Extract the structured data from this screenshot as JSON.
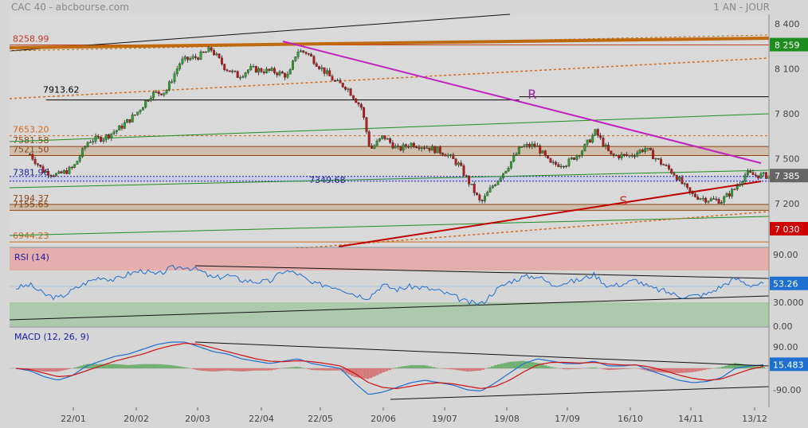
{
  "header": {
    "title": "CAC 40 - abcbourse.com",
    "period": "1 AN - JOUR"
  },
  "chart_data": [
    {
      "type": "candlestick",
      "title": "CAC 40",
      "y_ticks": [
        "8 400",
        "8 100",
        "7 800",
        "7 500",
        "7 200"
      ],
      "y_tick_values": [
        8400,
        8100,
        7800,
        7500,
        7200
      ],
      "ylim": [
        6900,
        8500
      ],
      "x_ticks": [
        "22/01",
        "20/02",
        "20/03",
        "22/04",
        "22/05",
        "20/06",
        "19/07",
        "19/08",
        "17/09",
        "16/10",
        "14/11",
        "13/12"
      ],
      "price_anchors": [
        {
          "date": "02/01",
          "close": 7530
        },
        {
          "date": "08/01",
          "close": 7420
        },
        {
          "date": "15/01",
          "close": 7390
        },
        {
          "date": "22/01",
          "close": 7440
        },
        {
          "date": "29/01",
          "close": 7620
        },
        {
          "date": "05/02",
          "close": 7640
        },
        {
          "date": "12/02",
          "close": 7700
        },
        {
          "date": "20/02",
          "close": 7800
        },
        {
          "date": "27/02",
          "close": 7930
        },
        {
          "date": "05/03",
          "close": 7950
        },
        {
          "date": "12/03",
          "close": 8150
        },
        {
          "date": "20/03",
          "close": 8180
        },
        {
          "date": "27/03",
          "close": 8230
        },
        {
          "date": "03/04",
          "close": 8110
        },
        {
          "date": "10/04",
          "close": 8050
        },
        {
          "date": "16/04",
          "close": 8100
        },
        {
          "date": "22/04",
          "close": 8090
        },
        {
          "date": "29/04",
          "close": 8080
        },
        {
          "date": "06/05",
          "close": 8050
        },
        {
          "date": "10/05",
          "close": 8220
        },
        {
          "date": "15/05",
          "close": 8210
        },
        {
          "date": "22/05",
          "close": 8110
        },
        {
          "date": "29/05",
          "close": 8010
        },
        {
          "date": "03/06",
          "close": 7980
        },
        {
          "date": "10/06",
          "close": 7840
        },
        {
          "date": "14/06",
          "close": 7560
        },
        {
          "date": "20/06",
          "close": 7650
        },
        {
          "date": "27/06",
          "close": 7560
        },
        {
          "date": "03/07",
          "close": 7600
        },
        {
          "date": "10/07",
          "close": 7580
        },
        {
          "date": "19/07",
          "close": 7540
        },
        {
          "date": "26/07",
          "close": 7460
        },
        {
          "date": "02/08",
          "close": 7300
        },
        {
          "date": "06/08",
          "close": 7200
        },
        {
          "date": "12/08",
          "close": 7320
        },
        {
          "date": "19/08",
          "close": 7440
        },
        {
          "date": "26/08",
          "close": 7580
        },
        {
          "date": "02/09",
          "close": 7590
        },
        {
          "date": "09/09",
          "close": 7460
        },
        {
          "date": "17/09",
          "close": 7470
        },
        {
          "date": "24/09",
          "close": 7560
        },
        {
          "date": "30/09",
          "close": 7680
        },
        {
          "date": "07/10",
          "close": 7520
        },
        {
          "date": "16/10",
          "close": 7520
        },
        {
          "date": "23/10",
          "close": 7570
        },
        {
          "date": "30/10",
          "close": 7480
        },
        {
          "date": "06/11",
          "close": 7400
        },
        {
          "date": "14/11",
          "close": 7260
        },
        {
          "date": "21/11",
          "close": 7230
        },
        {
          "date": "28/11",
          "close": 7220
        },
        {
          "date": "04/12",
          "close": 7300
        },
        {
          "date": "09/12",
          "close": 7400
        },
        {
          "date": "13/12",
          "close": 7390
        },
        {
          "date": "20/12",
          "close": 7385
        }
      ],
      "levels": [
        {
          "label": "8258.99",
          "value": 8258.99,
          "color": "#c0392b"
        },
        {
          "label": "7913.62",
          "value": 7913.62,
          "color": "#000000"
        },
        {
          "label": "7653.20",
          "value": 7653.2,
          "color": "#d2691e"
        },
        {
          "label": "7581.58",
          "value": 7581.58,
          "color": "#8b4513"
        },
        {
          "label": "7521.50",
          "value": 7521.5,
          "color": "#8b4513"
        },
        {
          "label": "7381.96",
          "value": 7381.96,
          "color": "#1a1aa6"
        },
        {
          "label": "7349.68",
          "value": 7349.68,
          "color": "#1a1aa6"
        },
        {
          "label": "7194.37",
          "value": 7194.37,
          "color": "#8b4513"
        },
        {
          "label": "7155.65",
          "value": 7155.65,
          "color": "#8b4513"
        },
        {
          "label": "6944.23",
          "value": 6944.23,
          "color": "#d2691e"
        }
      ],
      "annotations": [
        {
          "text": "R",
          "date": "29/08",
          "value": 7900,
          "color": "#a020a0"
        },
        {
          "text": "S",
          "date": "11/10",
          "value": 7190,
          "color": "#c0392b"
        }
      ],
      "badges": [
        {
          "text": "8 259",
          "value": 8259,
          "bg": "#1e8c1e",
          "fg": "#ffffff"
        },
        {
          "text": "7 385",
          "value": 7385,
          "bg": "#666666",
          "fg": "#ffffff"
        },
        {
          "text": "7 030",
          "value": 7030,
          "bg": "#d10000",
          "fg": "#ffffff"
        }
      ]
    },
    {
      "type": "line",
      "title": "RSI (14)",
      "y_ticks": [
        "90.00",
        "30.000",
        "0.00"
      ],
      "y_tick_values": [
        90,
        30,
        0
      ],
      "ylim": [
        0,
        100
      ],
      "overbought": 70,
      "oversold": 30,
      "current": {
        "text": "53.26",
        "value": 53.26
      },
      "series": [
        {
          "values": [
            48,
            52,
            40,
            35,
            45,
            55,
            62,
            58,
            66,
            70,
            64,
            73,
            75,
            70,
            60,
            64,
            58,
            56,
            56,
            70,
            66,
            53,
            52,
            48,
            40,
            36,
            52,
            46,
            50,
            48,
            44,
            38,
            30,
            28,
            45,
            56,
            62,
            63,
            52,
            55,
            58,
            65,
            50,
            53,
            58,
            48,
            44,
            38,
            38,
            40,
            50,
            60,
            52,
            53
          ]
        }
      ]
    },
    {
      "type": "line",
      "title": "MACD (12, 26, 9)",
      "y_ticks": [
        "90.00",
        "-90.00"
      ],
      "y_tick_values": [
        90,
        -90
      ],
      "ylim": [
        -130,
        130
      ],
      "current": {
        "text": "15.483",
        "value": 15.483
      },
      "series": [
        {
          "values": [
            0,
            -10,
            -35,
            -50,
            -30,
            10,
            30,
            50,
            60,
            80,
            100,
            110,
            110,
            90,
            70,
            60,
            40,
            30,
            20,
            30,
            40,
            20,
            10,
            0,
            -60,
            -110,
            -100,
            -80,
            -60,
            -50,
            -60,
            -70,
            -90,
            -95,
            -60,
            -20,
            20,
            40,
            30,
            20,
            20,
            30,
            10,
            10,
            15,
            -10,
            -30,
            -50,
            -60,
            -55,
            -40,
            0,
            10,
            15
          ]
        },
        {
          "values": [
            0,
            -5,
            -20,
            -35,
            -30,
            -10,
            10,
            30,
            45,
            60,
            80,
            95,
            105,
            100,
            85,
            70,
            55,
            40,
            30,
            28,
            32,
            28,
            20,
            10,
            -20,
            -60,
            -80,
            -85,
            -75,
            -65,
            -60,
            -65,
            -75,
            -85,
            -75,
            -50,
            -15,
            15,
            25,
            25,
            22,
            25,
            18,
            14,
            14,
            5,
            -10,
            -28,
            -42,
            -50,
            -45,
            -25,
            -5,
            8
          ]
        }
      ]
    }
  ]
}
